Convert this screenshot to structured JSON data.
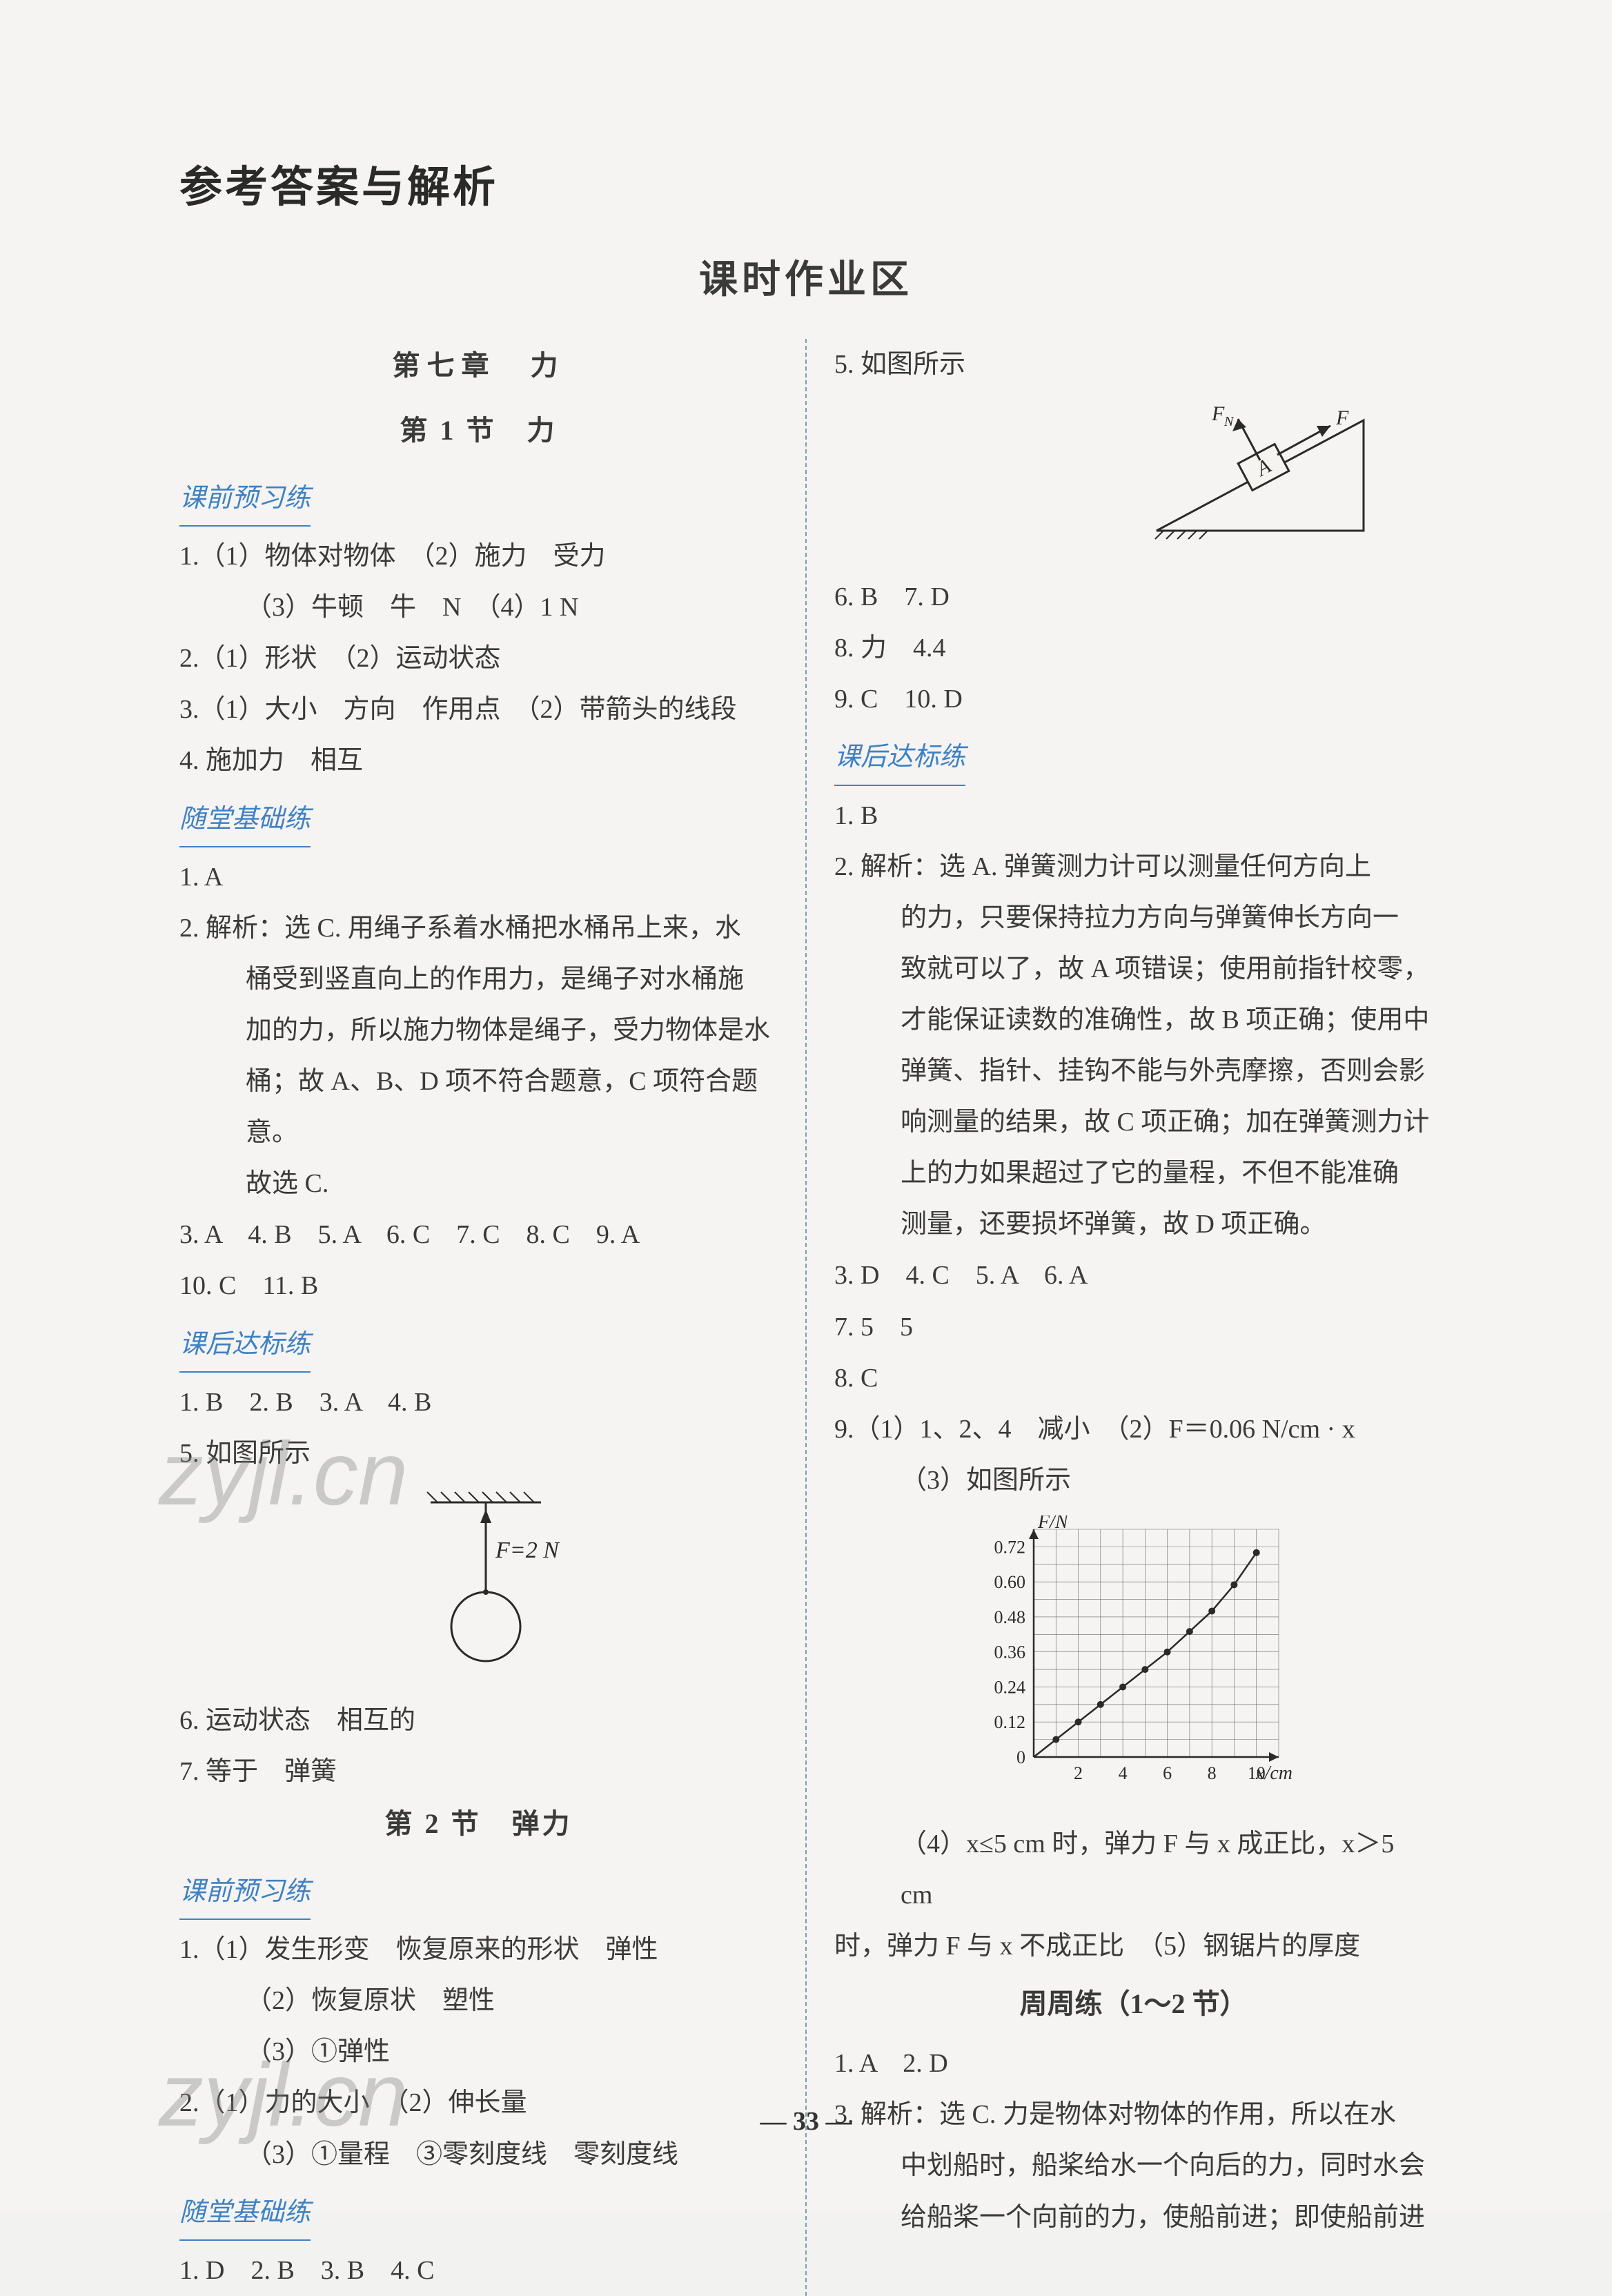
{
  "title": "参考答案与解析",
  "subtitle": "课时作业区",
  "page_number": "— 33 —",
  "watermarks": {
    "w1": "zyjl.cn",
    "w2": "zyjl.cn"
  },
  "left": {
    "chapter": "第七章　力",
    "s1_title": "第 1 节　力",
    "pre_label": "课前预习练",
    "pre1": "1.（1）物体对物体　（2）施力　受力",
    "pre1b": "（3）牛顿　牛　N　（4）1 N",
    "pre2": "2.（1）形状　（2）运动状态",
    "pre3": "3.（1）大小　方向　作用点　（2）带箭头的线段",
    "pre4": "4. 施加力　相互",
    "base_label": "随堂基础练",
    "b1": "1. A",
    "b2_head": "2. 解析：选 C. 用绳子系着水桶把水桶吊上来，水",
    "b2_l2": "桶受到竖直向上的作用力，是绳子对水桶施",
    "b2_l3": "加的力，所以施力物体是绳子，受力物体是水",
    "b2_l4": "桶；故 A、B、D 项不符合题意，C 项符合题意。",
    "b2_l5": "故选 C.",
    "b3": "3. A　4. B　5. A　6. C　7. C　8. C　9. A",
    "b4": "10. C　11. B",
    "post_label": "课后达标练",
    "p1": "1. B　2. B　3. A　4. B",
    "p5": "5. 如图所示",
    "fig1_label": "F=2 N",
    "p6": "6. 运动状态　相互的",
    "p7": "7. 等于　弹簧",
    "s2_title": "第 2 节　弹力",
    "pre2_label": "课前预习练",
    "s2p1": "1.（1）发生形变　恢复原来的形状　弹性",
    "s2p1b": "（2）恢复原状　塑性",
    "s2p1c": "（3）①弹性",
    "s2p2": "2.（1）力的大小　（2）伸长量",
    "s2p2b": "（3）①量程　③零刻度线　零刻度线",
    "base2_label": "随堂基础练",
    "s2b1": "1. D　2. B　3. B　4. C"
  },
  "right": {
    "r5": "5. 如图所示",
    "fig2_fn": "F_N",
    "fig2_f": "F",
    "fig2_a": "A",
    "r6": "6. B　7. D",
    "r8": "8. 力　4.4",
    "r9": "9. C　10. D",
    "post_label": "课后达标练",
    "rp1": "1. B",
    "rp2_head": "2. 解析：选 A. 弹簧测力计可以测量任何方向上",
    "rp2_l2": "的力，只要保持拉力方向与弹簧伸长方向一",
    "rp2_l3": "致就可以了，故 A 项错误；使用前指针校零，",
    "rp2_l4": "才能保证读数的准确性，故 B 项正确；使用中",
    "rp2_l5": "弹簧、指针、挂钩不能与外壳摩擦，否则会影",
    "rp2_l6": "响测量的结果，故 C 项正确；加在弹簧测力计",
    "rp2_l7": "上的力如果超过了它的量程，不但不能准确",
    "rp2_l8": "测量，还要损坏弹簧，故 D 项正确。",
    "rp3": "3. D　4. C　5. A　6. A",
    "rp7": "7. 5　5",
    "rp8": "8. C",
    "rp9": "9.（1）1、2、4　减小　（2）F＝0.06 N/cm · x",
    "rp9b": "（3）如图所示",
    "chart": {
      "type": "scatter-line",
      "y_label": "F/N",
      "x_label": "x/cm",
      "x_ticks": [
        "2",
        "4",
        "6",
        "8",
        "10"
      ],
      "y_ticks": [
        "0",
        "0.12",
        "0.24",
        "0.36",
        "0.48",
        "0.60",
        "0.72"
      ],
      "x_range": [
        0,
        11
      ],
      "y_range": [
        0,
        0.78
      ],
      "points": [
        [
          1,
          0.06
        ],
        [
          2,
          0.12
        ],
        [
          3,
          0.18
        ],
        [
          4,
          0.24
        ],
        [
          5,
          0.3
        ],
        [
          6,
          0.36
        ],
        [
          7,
          0.43
        ],
        [
          8,
          0.5
        ],
        [
          9,
          0.59
        ],
        [
          10,
          0.7
        ]
      ],
      "grid_color": "#6a6a6a",
      "axis_color": "#2a2a2a",
      "point_color": "#2a2a2a",
      "line_color": "#2a2a2a",
      "bg": "#ffffff"
    },
    "rp9_4a": "（4）x≤5 cm 时，弹力 F 与 x 成正比，x＞5 cm",
    "rp9_4b": "时，弹力 F 与 x 不成正比　（5）钢锯片的厚度",
    "week_title": "周周练（1～2 节）",
    "w1": "1. A　2. D",
    "w3_head": "3. 解析：选 C. 力是物体对物体的作用，所以在水",
    "w3_l2": "中划船时，船桨给水一个向后的力，同时水会",
    "w3_l3": "给船桨一个向前的力，使船前进；即使船前进"
  }
}
